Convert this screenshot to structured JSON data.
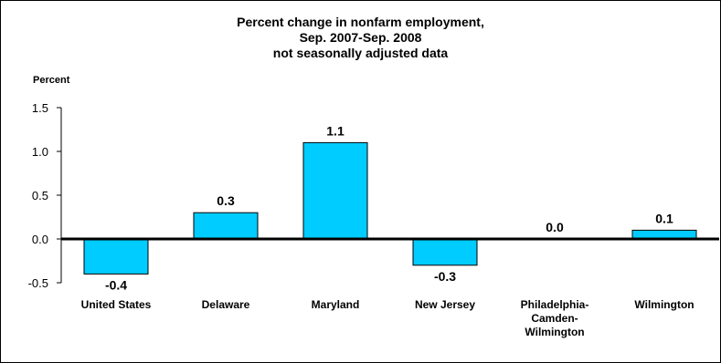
{
  "chart_data": {
    "type": "bar",
    "title_lines": [
      "Percent change in nonfarm employment,",
      "Sep. 2007-Sep. 2008",
      "not seasonally adjusted data"
    ],
    "ylabel": "Percent",
    "categories": [
      [
        "United States"
      ],
      [
        "Delaware"
      ],
      [
        "Maryland"
      ],
      [
        "New Jersey"
      ],
      [
        "Philadelphia-",
        "Camden-",
        "Wilmington"
      ],
      [
        "Wilmington"
      ]
    ],
    "values": [
      -0.4,
      0.3,
      1.1,
      -0.3,
      0.0,
      0.1
    ],
    "value_labels": [
      "-0.4",
      "0.3",
      "1.1",
      "-0.3",
      "0.0",
      "0.1"
    ],
    "ylim": [
      -0.5,
      1.5
    ],
    "yticks": [
      1.5,
      1.0,
      0.5,
      0.0,
      -0.5
    ],
    "ytick_labels": [
      "1.5",
      "1.0",
      "0.5",
      "0.0",
      "-0.5"
    ],
    "bar_color": "#00CCFF",
    "grid": false
  }
}
